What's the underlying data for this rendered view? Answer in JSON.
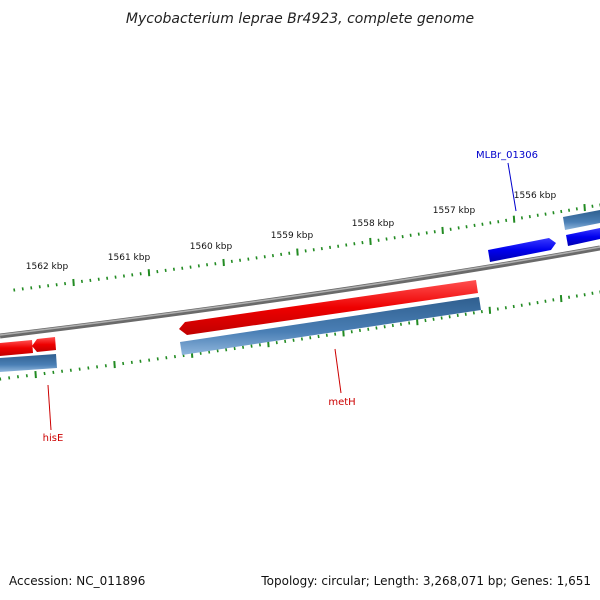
{
  "title": "Mycobacterium leprae Br4923, complete genome",
  "colors": {
    "forward_gene": "#0000ee",
    "reverse_gene": "#ee0000",
    "backbone": "#808080",
    "cds_track": "#4a7fb5",
    "ticks": "#228b22",
    "forward_label": "#0000cc",
    "reverse_label": "#cc0000"
  },
  "kbp_labels": [
    "1556 kbp",
    "1557 kbp",
    "1558 kbp",
    "1559 kbp",
    "1560 kbp",
    "1561 kbp",
    "1562 kbp"
  ],
  "gene_labels": [
    {
      "name": "MLBr_01306",
      "strand": "forward"
    },
    {
      "name": "metH",
      "strand": "reverse"
    },
    {
      "name": "hisE",
      "strand": "reverse"
    }
  ],
  "footer": {
    "accession": "Accession: NC_011896",
    "topology": "Topology: circular; Length: 3,268,071 bp; Genes: 1,651"
  }
}
